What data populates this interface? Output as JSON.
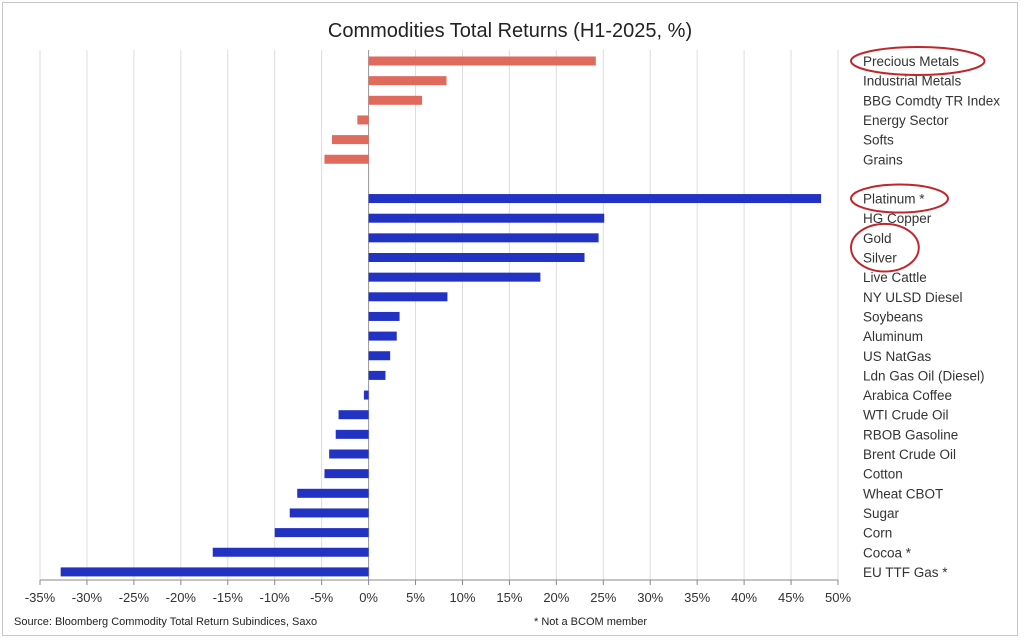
{
  "chart_data": {
    "type": "bar",
    "orientation": "horizontal",
    "title": "Commodities Total Returns (H1-2025, %)",
    "xlim": [
      -35,
      50
    ],
    "xticks": [
      -35,
      -30,
      -25,
      -20,
      -15,
      -10,
      -5,
      0,
      5,
      10,
      15,
      20,
      25,
      30,
      35,
      40,
      45,
      50
    ],
    "tick_suffix": "%",
    "grid": "vertical",
    "series": [
      {
        "group": "indices",
        "color": "#e06a5c",
        "categories": [
          "Precious Metals",
          "Industrial Metals",
          "BBG Comdty TR Index",
          "Energy Sector",
          "Softs",
          "Grains"
        ],
        "values": [
          24.2,
          8.3,
          5.7,
          -1.2,
          -3.9,
          -4.7
        ],
        "highlighted": [
          true,
          false,
          false,
          false,
          false,
          false
        ]
      },
      {
        "group": "individual",
        "color": "#2233c4",
        "categories": [
          "Platinum *",
          "HG Copper",
          "Gold",
          "Silver",
          "Live Cattle",
          "NY ULSD Diesel",
          "Soybeans",
          "Aluminum",
          "US NatGas",
          "Ldn Gas Oil (Diesel)",
          "Arabica Coffee",
          "WTI Crude Oil",
          "RBOB Gasoline",
          "Brent Crude Oil",
          "Cotton",
          "Wheat CBOT",
          "Sugar",
          "Corn",
          "Cocoa *",
          "EU TTF Gas *"
        ],
        "values": [
          48.2,
          25.1,
          24.5,
          23.0,
          18.3,
          8.4,
          3.3,
          3.0,
          2.3,
          1.8,
          -0.5,
          -3.2,
          -3.5,
          -4.2,
          -4.7,
          -7.6,
          -8.4,
          -10.0,
          -16.6,
          -32.8
        ],
        "highlighted": [
          true,
          false,
          true,
          true,
          false,
          false,
          false,
          false,
          false,
          false,
          false,
          false,
          false,
          false,
          false,
          false,
          false,
          false,
          false,
          false
        ]
      }
    ]
  },
  "footer": {
    "source": "Source: Bloomberg Commodity Total Return Subindices, Saxo",
    "note": "* Not a BCOM member"
  }
}
